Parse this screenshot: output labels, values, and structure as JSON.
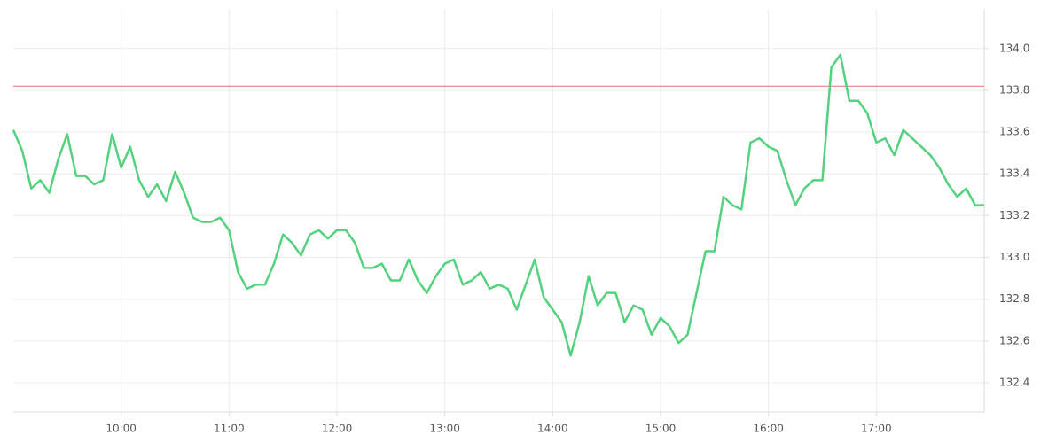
{
  "chart_data": {
    "type": "line",
    "x": [
      "09:00",
      "09:05",
      "09:10",
      "09:15",
      "09:20",
      "09:25",
      "09:30",
      "09:35",
      "09:40",
      "09:45",
      "09:50",
      "09:55",
      "10:00",
      "10:05",
      "10:10",
      "10:15",
      "10:20",
      "10:25",
      "10:30",
      "10:35",
      "10:40",
      "10:45",
      "10:50",
      "10:55",
      "11:00",
      "11:05",
      "11:10",
      "11:15",
      "11:20",
      "11:25",
      "11:30",
      "11:35",
      "11:40",
      "11:45",
      "11:50",
      "11:55",
      "12:00",
      "12:05",
      "12:10",
      "12:15",
      "12:20",
      "12:25",
      "12:30",
      "12:35",
      "12:40",
      "12:45",
      "12:50",
      "12:55",
      "13:00",
      "13:05",
      "13:10",
      "13:15",
      "13:20",
      "13:25",
      "13:30",
      "13:35",
      "13:40",
      "13:45",
      "13:50",
      "13:55",
      "14:00",
      "14:05",
      "14:10",
      "14:15",
      "14:20",
      "14:25",
      "14:30",
      "14:35",
      "14:40",
      "14:45",
      "14:50",
      "14:55",
      "15:00",
      "15:05",
      "15:10",
      "15:15",
      "15:20",
      "15:25",
      "15:30",
      "15:35",
      "15:40",
      "15:45",
      "15:50",
      "15:55",
      "16:00",
      "16:05",
      "16:10",
      "16:15",
      "16:20",
      "16:25",
      "16:30",
      "16:35",
      "16:40",
      "16:45",
      "16:50",
      "16:55",
      "17:00",
      "17:05",
      "17:10",
      "17:15",
      "17:20",
      "17:25",
      "17:30",
      "17:35",
      "17:40",
      "17:45",
      "17:50",
      "17:55",
      "18:00"
    ],
    "values": [
      133.61,
      133.51,
      133.33,
      133.37,
      133.31,
      133.47,
      133.59,
      133.39,
      133.39,
      133.35,
      133.37,
      133.59,
      133.43,
      133.53,
      133.37,
      133.29,
      133.35,
      133.27,
      133.41,
      133.31,
      133.19,
      133.17,
      133.17,
      133.19,
      133.13,
      132.93,
      132.85,
      132.87,
      132.87,
      132.97,
      133.11,
      133.07,
      133.01,
      133.11,
      133.13,
      133.09,
      133.13,
      133.13,
      133.07,
      132.95,
      132.95,
      132.97,
      132.89,
      132.89,
      132.99,
      132.89,
      132.83,
      132.91,
      132.97,
      132.99,
      132.87,
      132.89,
      132.93,
      132.85,
      132.87,
      132.85,
      132.75,
      132.87,
      132.99,
      132.81,
      132.75,
      132.69,
      132.53,
      132.69,
      132.91,
      132.77,
      132.83,
      132.83,
      132.69,
      132.77,
      132.75,
      132.63,
      132.71,
      132.67,
      132.59,
      132.63,
      132.83,
      133.03,
      133.03,
      133.29,
      133.25,
      133.23,
      133.55,
      133.57,
      133.53,
      133.51,
      133.37,
      133.25,
      133.33,
      133.37,
      133.37,
      133.91,
      133.97,
      133.75,
      133.75,
      133.69,
      133.55,
      133.57,
      133.49,
      133.61,
      133.57,
      133.53,
      133.49,
      133.43,
      133.35,
      133.29,
      133.33,
      133.25,
      133.25
    ],
    "color": "#55d17f",
    "reference_line": {
      "value": 133.82,
      "color": "#e07070"
    },
    "xlim": [
      "09:00",
      "18:00"
    ],
    "xticks": [
      "10:00",
      "11:00",
      "12:00",
      "13:00",
      "14:00",
      "15:00",
      "16:00",
      "17:00"
    ],
    "ylim": [
      132.26,
      134.19
    ],
    "yticks": [
      {
        "value": 132.4,
        "label": "132,4"
      },
      {
        "value": 132.6,
        "label": "132,6"
      },
      {
        "value": 132.8,
        "label": "132,8"
      },
      {
        "value": 133.0,
        "label": "133,0"
      },
      {
        "value": 133.2,
        "label": "133,2"
      },
      {
        "value": 133.4,
        "label": "133,4"
      },
      {
        "value": 133.6,
        "label": "133,6"
      },
      {
        "value": 133.8,
        "label": "133,8"
      },
      {
        "value": 134.0,
        "label": "134,0"
      }
    ],
    "grid": true
  }
}
